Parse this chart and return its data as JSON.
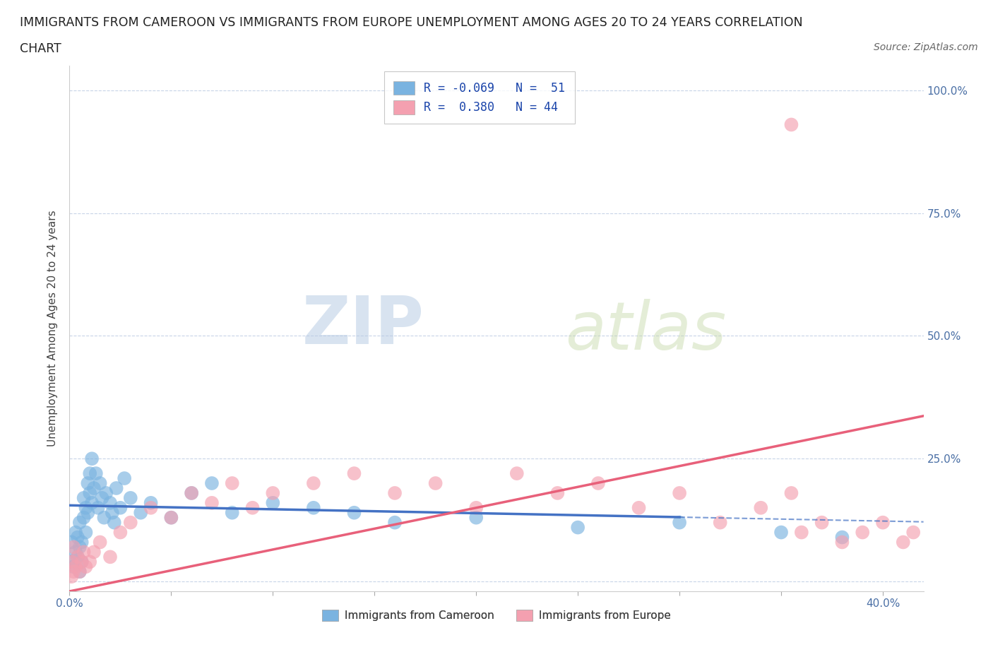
{
  "title_line1": "IMMIGRANTS FROM CAMEROON VS IMMIGRANTS FROM EUROPE UNEMPLOYMENT AMONG AGES 20 TO 24 YEARS CORRELATION",
  "title_line2": "CHART",
  "source": "Source: ZipAtlas.com",
  "ylabel": "Unemployment Among Ages 20 to 24 years",
  "xlim": [
    0.0,
    0.42
  ],
  "ylim": [
    -0.02,
    1.05
  ],
  "y_ticks_right": [
    0.0,
    0.25,
    0.5,
    0.75,
    1.0
  ],
  "y_tick_labels_right": [
    "",
    "25.0%",
    "50.0%",
    "75.0%",
    "100.0%"
  ],
  "cameroon_color": "#7ab3e0",
  "europe_color": "#f4a0b0",
  "cameroon_line_color": "#4472c4",
  "europe_line_color": "#e8607a",
  "r_cameroon": -0.069,
  "n_cameroon": 51,
  "r_europe": 0.38,
  "n_europe": 44,
  "watermark_zip": "ZIP",
  "watermark_atlas": "atlas",
  "background_color": "#ffffff",
  "grid_color": "#c8d4e8",
  "title_fontsize": 12.5,
  "axis_label_fontsize": 11,
  "tick_fontsize": 11,
  "legend_fontsize": 12,
  "source_fontsize": 10
}
